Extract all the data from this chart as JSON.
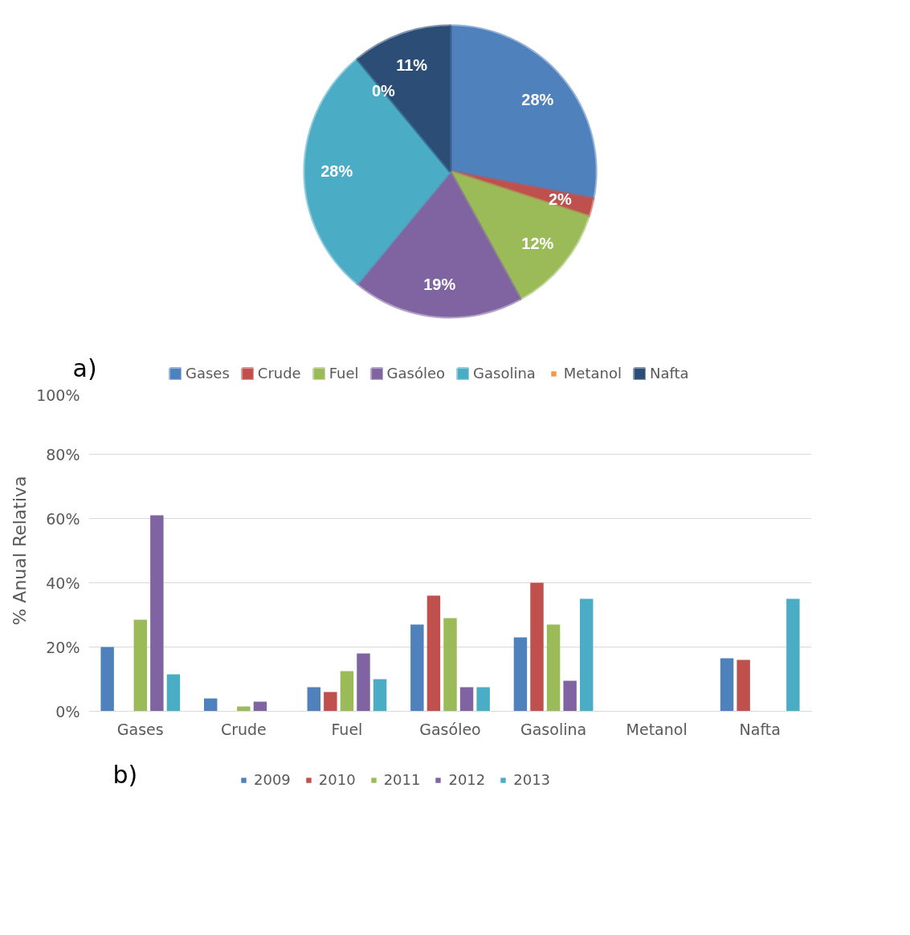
{
  "chart_data": [
    {
      "type": "pie",
      "categories": [
        "Gases",
        "Crude",
        "Fuel",
        "Gasóleo",
        "Gasolina",
        "Metanol",
        "Nafta"
      ],
      "values": [
        28,
        2,
        12,
        19,
        28,
        0,
        11
      ],
      "colors": [
        "#4f81bd",
        "#c0504d",
        "#9bbb59",
        "#8064a2",
        "#4bacc6",
        "#f79646",
        "#2c4d75"
      ],
      "value_labels": [
        "28%",
        "2%",
        "12%",
        "19%",
        "28%",
        "0%",
        "11%"
      ],
      "legend": "bottom",
      "annotations": [
        "a)"
      ]
    },
    {
      "type": "bar",
      "categories": [
        "Gases",
        "Crude",
        "Fuel",
        "Gasóleo",
        "Gasolina",
        "Metanol",
        "Nafta"
      ],
      "ylabel": "% Anual Relativa",
      "series": [
        {
          "name": "2009",
          "color": "#4f81bd",
          "values": [
            20,
            4,
            7.5,
            27,
            23,
            0,
            16.5
          ]
        },
        {
          "name": "2010",
          "color": "#c0504d",
          "values": [
            0,
            0,
            6,
            36,
            40,
            0,
            16
          ]
        },
        {
          "name": "2011",
          "color": "#9bbb59",
          "values": [
            28.5,
            1.5,
            12.5,
            29,
            27,
            0,
            0
          ]
        },
        {
          "name": "2012",
          "color": "#8064a2",
          "values": [
            61,
            3,
            18,
            7.5,
            9.5,
            0,
            0
          ]
        },
        {
          "name": "2013",
          "color": "#4bacc6",
          "values": [
            11.5,
            0,
            10,
            7.5,
            35,
            0,
            35
          ]
        }
      ],
      "ylim": [
        0,
        100
      ],
      "yticks": [
        {
          "value": 0,
          "label": "0%"
        },
        {
          "value": 20,
          "label": "20%"
        },
        {
          "value": 40,
          "label": "40%"
        },
        {
          "value": 60,
          "label": "60%"
        },
        {
          "value": 80,
          "label": "80%"
        },
        {
          "value": 100,
          "label": "100%"
        }
      ],
      "grid": "y",
      "legend": "bottom",
      "annotations": [
        "b)"
      ]
    }
  ]
}
